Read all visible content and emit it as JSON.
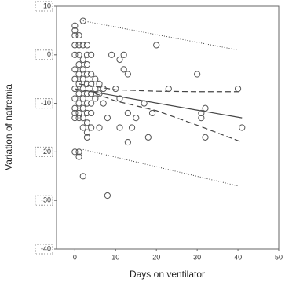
{
  "chart_data": {
    "type": "scatter",
    "x_label": "Days on ventilator",
    "y_label": "Variation of natremia",
    "xlim": [
      -4.5,
      50
    ],
    "ylim": [
      -40,
      10
    ],
    "xticks": [
      0,
      10,
      20,
      30,
      40,
      50
    ],
    "yticks": [
      10,
      0,
      -10,
      -20,
      -30,
      -40
    ],
    "marker_color": "#555555",
    "x": [
      0,
      0,
      0,
      0,
      0,
      0,
      0,
      0,
      0,
      0,
      0,
      0,
      0,
      1,
      1,
      1,
      1,
      1,
      1,
      1,
      1,
      1,
      1,
      1,
      1,
      2,
      2,
      2,
      2,
      2,
      2,
      2,
      2,
      2,
      2,
      2,
      3,
      3,
      3,
      3,
      3,
      3,
      3,
      3,
      3,
      3,
      3,
      4,
      4,
      4,
      4,
      4,
      4,
      4,
      5,
      5,
      5,
      6,
      6,
      6,
      7,
      7,
      8,
      8,
      9,
      10,
      11,
      11,
      11,
      12,
      12,
      13,
      13,
      13,
      14,
      15,
      17,
      18,
      19,
      20,
      23,
      30,
      31,
      31,
      32,
      32,
      40,
      41
    ],
    "y": [
      6,
      5,
      4,
      2,
      0,
      -3,
      -5,
      -7,
      -9,
      -11,
      -13,
      -20,
      -12,
      4,
      0,
      2,
      -2,
      -4,
      -6,
      -8,
      -10,
      -12,
      -13,
      -20,
      -21,
      7,
      2,
      -1,
      -3,
      -5,
      -7,
      -9,
      -11,
      -13,
      -15,
      -25,
      2,
      0,
      -2,
      -4,
      -6,
      -8,
      -10,
      -12,
      -14,
      -16,
      -17,
      0,
      -4,
      -6,
      -8,
      -10,
      -12,
      -15,
      -5,
      -7,
      -9,
      -6,
      -8,
      -15,
      -7,
      -10,
      -13,
      -29,
      0,
      -7,
      -1,
      -9,
      -15,
      0,
      -3,
      -4,
      -18,
      -12,
      -15,
      -13,
      -10,
      -17,
      -12,
      2,
      -7,
      -4,
      -12,
      -13,
      -11,
      -17,
      -7,
      -15
    ],
    "lines": [
      {
        "style": "solid",
        "x": [
          0,
          41
        ],
        "y": [
          -7,
          -13
        ]
      },
      {
        "style": "dashed",
        "x": [
          1,
          10,
          20,
          30,
          41
        ],
        "y": [
          -6,
          -7.2,
          -7.5,
          -7.6,
          -7.6
        ]
      },
      {
        "style": "dashed",
        "x": [
          5,
          10,
          20,
          30,
          41
        ],
        "y": [
          -8,
          -9.5,
          -11.5,
          -14.5,
          -18
        ]
      },
      {
        "style": "dotted",
        "x": [
          2,
          40
        ],
        "y": [
          7,
          1
        ]
      },
      {
        "style": "dotted",
        "x": [
          2,
          40
        ],
        "y": [
          -19.5,
          -27
        ]
      }
    ]
  }
}
